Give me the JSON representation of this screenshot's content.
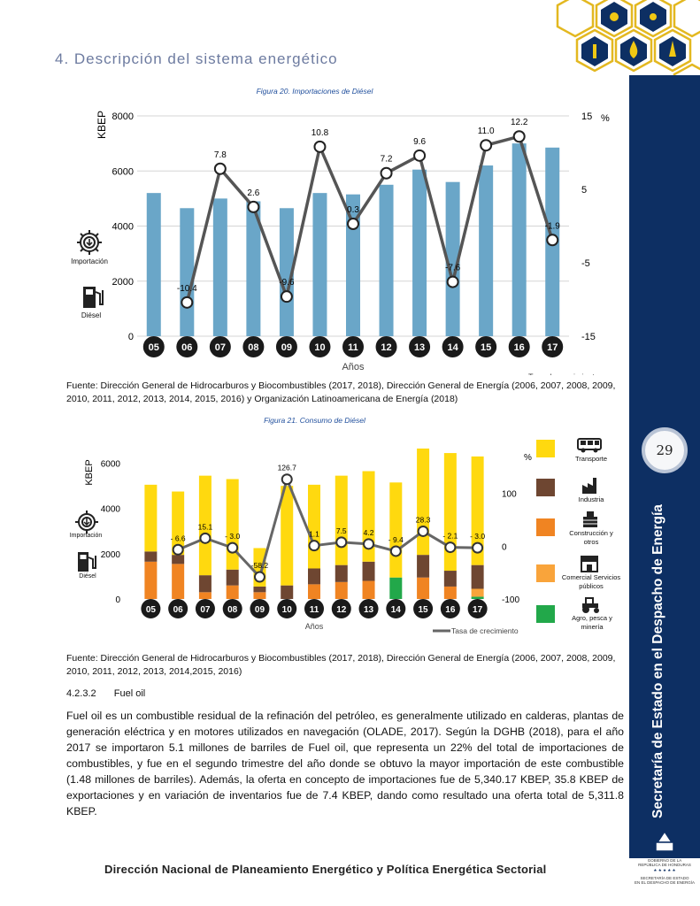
{
  "header": {
    "section_title": "4. Descripción del sistema energético"
  },
  "sidebar": {
    "page_number": "29",
    "vertical_text": "Secretaría de Estado en el Despacho de Energía"
  },
  "figure20": {
    "caption": "Figura 20. Importaciones de Diésel",
    "source": "Fuente: Dirección General de Hidrocarburos y Biocombustibles (2017, 2018), Dirección General de Energía (2006, 2007, 2008, 2009, 2010, 2011, 2012, 2013, 2014, 2015, 2016) y Organización Latinoamericana de Energía (2018)",
    "icon_labels": [
      "Importación",
      "Diésel"
    ]
  },
  "figure21": {
    "caption": "Figura 21. Consumo de Diésel",
    "source": "Fuente: Dirección General de Hidrocarburos y Biocombustibles (2017, 2018), Dirección General de Energía (2006, 2007, 2008, 2009, 2010, 2011, 2012, 2013, 2014,2015, 2016)",
    "icon_labels": [
      "Importación",
      "Diésel"
    ]
  },
  "chart_data": [
    {
      "type": "bar",
      "title": "Figura 20. Importaciones de Diésel",
      "xlabel": "Años",
      "ylabel": "KBEP",
      "y2label": "%",
      "categories": [
        "05",
        "06",
        "07",
        "08",
        "09",
        "10",
        "11",
        "12",
        "13",
        "14",
        "15",
        "16",
        "17"
      ],
      "ylim": [
        0,
        8000
      ],
      "yticks": [
        "0",
        "2000",
        "4000",
        "6000",
        "8000"
      ],
      "y2lim": [
        -15,
        15
      ],
      "y2ticks": [
        "-15",
        "-5",
        "5",
        "15"
      ],
      "colors": {
        "bar": "#6aa6c8",
        "line": "#555555"
      },
      "series": [
        {
          "kind": "bar",
          "values": [
            5200,
            4650,
            5000,
            4900,
            4650,
            5200,
            5150,
            5500,
            6050,
            5600,
            6200,
            7000,
            6850
          ]
        },
        {
          "name": "Tasa de crecimiento",
          "kind": "line",
          "axis": "y2",
          "values": [
            null,
            -10.4,
            7.8,
            2.6,
            -9.6,
            10.8,
            0.3,
            7.2,
            9.6,
            -7.6,
            11.0,
            12.2,
            -1.9
          ],
          "labels": [
            "",
            "-10.4",
            "7.8",
            "2.6",
            "-9.6",
            "10.8",
            "0.3",
            "7.2",
            "9.6",
            "-7.6",
            "11.0",
            "12.2",
            "-1.9"
          ]
        }
      ],
      "legend_entry": "Tasa de crecimiento"
    },
    {
      "type": "bar",
      "stacked": true,
      "title": "Figura 21. Consumo de Diésel",
      "xlabel": "Años",
      "ylabel": "KBEP",
      "y2label": "%",
      "categories": [
        "05",
        "06",
        "07",
        "08",
        "09",
        "10",
        "11",
        "12",
        "13",
        "14",
        "15",
        "16",
        "17"
      ],
      "ylim": [
        0,
        7000
      ],
      "yticks": [
        "0",
        "2000",
        "4000",
        "6000"
      ],
      "y2lim": [
        -100,
        200
      ],
      "y2ticks": [
        "-100",
        "0",
        "100"
      ],
      "series": [
        {
          "name": "Agro, pesca y minería",
          "color": "#22a84a",
          "values": [
            0,
            0,
            0,
            0,
            0,
            0,
            0,
            0,
            0,
            950,
            0,
            0,
            100
          ]
        },
        {
          "name": "Comercial Servicios públicos",
          "color": "#f9a43b",
          "values": [
            0,
            0,
            0,
            0,
            0,
            0,
            0,
            0,
            0,
            0,
            0,
            0,
            350
          ]
        },
        {
          "name": "Construcción y otros",
          "color": "#f08422",
          "values": [
            1650,
            1550,
            300,
            600,
            300,
            0,
            650,
            750,
            800,
            0,
            950,
            550,
            0
          ]
        },
        {
          "name": "Industria",
          "color": "#6e4631",
          "values": [
            450,
            400,
            750,
            700,
            250,
            600,
            700,
            750,
            850,
            0,
            1000,
            700,
            1050
          ]
        },
        {
          "name": "Transporte",
          "color": "#ffd90f",
          "values": [
            2950,
            2800,
            4400,
            4000,
            1700,
            4400,
            3700,
            3950,
            4000,
            4200,
            4700,
            5200,
            4800
          ]
        },
        {
          "name": "Tasa de crecimiento",
          "kind": "line",
          "axis": "y2",
          "color": "#666666",
          "values": [
            null,
            -6.6,
            15.1,
            -3.0,
            -58.2,
            126.7,
            1.1,
            7.5,
            4.2,
            -9.4,
            28.3,
            -2.1,
            -3.0
          ],
          "labels": [
            "",
            "- 6.6",
            "15.1",
            "- 3.0",
            "-58.2",
            "126.7",
            "1.1",
            "7.5",
            "4.2",
            "- 9.4",
            "28.3",
            "- 2.1",
            "- 3.0"
          ]
        }
      ],
      "legend": {
        "items": [
          "Transporte",
          "Industria",
          "Construcción y otros",
          "Comercial Servicios públicos",
          "Agro, pesca y minería"
        ],
        "line": "Tasa de crecimiento",
        "placement": "right"
      }
    }
  ],
  "subsection": {
    "number": "4.2.3.2",
    "title": "Fuel oil"
  },
  "body": {
    "paragraph": "Fuel oil es un combustible residual de la refinación del petróleo, es generalmente utilizado en calderas, plantas de generación eléctrica y en motores utilizados en navegación (OLADE, 2017). Según la DGHB (2018), para el año 2017 se importaron 5.1 millones de barriles de Fuel oil, que representa un 22% del total de importaciones de combustibles, y fue en el segundo trimestre del año donde se obtuvo la mayor importación de este combustible (1.48 millones de barriles). Además, la oferta en concepto de importaciones fue de 5,340.17 KBEP, 35.8 KBEP de exportaciones y en variación de inventarios fue de 7.4 KBEP, dando como resultado una oferta total de 5,311.8 KBEP."
  },
  "footer": {
    "text": "Dirección Nacional de Planeamiento Energético y Política Energética Sectorial",
    "logo_lines": [
      "GOBIERNO DE LA",
      "REPÚBLICA DE HONDURAS",
      "★ ★ ★ ★ ★",
      "SECRETARÍA DE ESTADO",
      "EN EL DESPACHO DE ENERGÍA"
    ]
  }
}
